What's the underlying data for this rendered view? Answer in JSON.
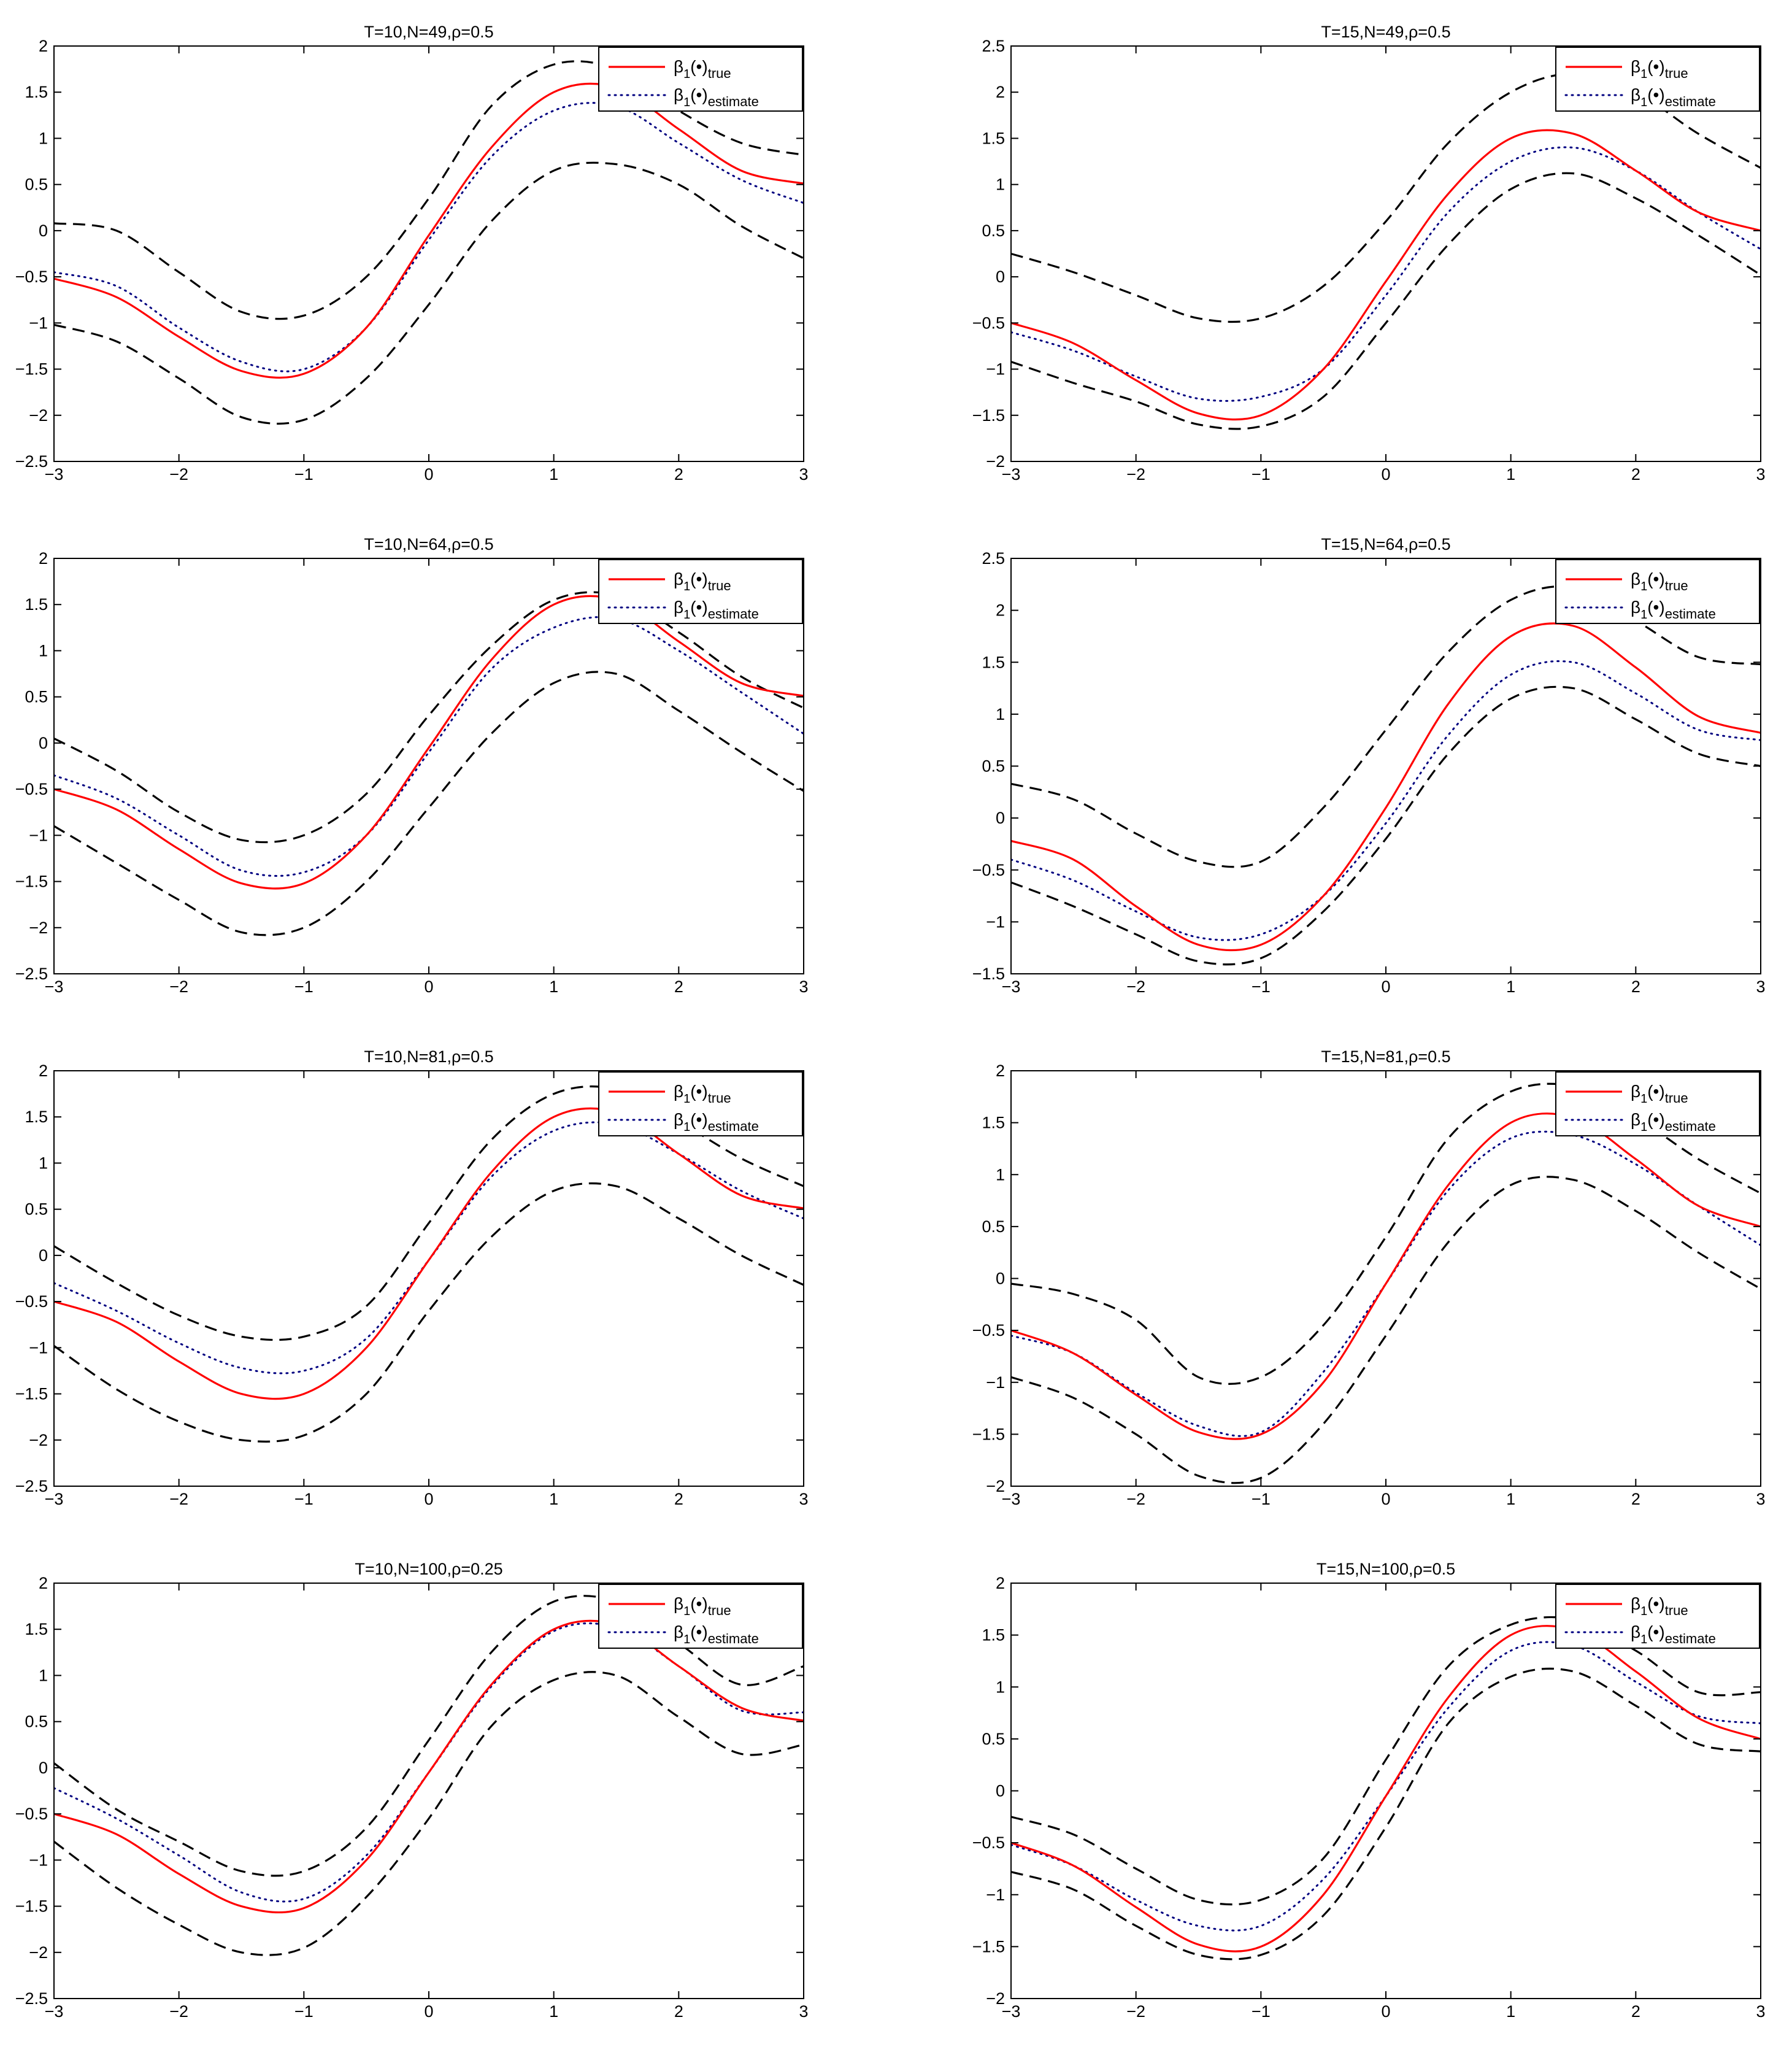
{
  "figure": {
    "colors": {
      "true": "#ff0000",
      "estimate": "#000080",
      "band": "#000000",
      "axis": "#000000"
    },
    "legend": {
      "true_label": "β",
      "true_sub1": "1",
      "true_mid": "(•)",
      "true_sub2": "true",
      "est_label": "β",
      "est_sub1": "1",
      "est_mid": "(•)",
      "est_sub2": "estimate"
    }
  },
  "chart_data": [
    {
      "type": "line",
      "title": "T=10,N=49,ρ=0.5",
      "xlim": [
        -3,
        3
      ],
      "ylim": [
        -2.5,
        2
      ],
      "xticks": [
        -3,
        -2,
        -1,
        0,
        1,
        2,
        3
      ],
      "xtick_labels": [
        "−3",
        "−2",
        "−1",
        "0",
        "1",
        "2",
        "3"
      ],
      "yticks": [
        -2.5,
        -2,
        -1.5,
        -1,
        -0.5,
        0,
        0.5,
        1,
        1.5,
        2
      ],
      "ytick_labels": [
        "−2.5",
        "−2",
        "−1.5",
        "−1",
        "−0.5",
        "0",
        "0.5",
        "1",
        "1.5",
        "2"
      ],
      "x": [
        -3,
        -2.5,
        -2,
        -1.5,
        -1,
        -0.5,
        0,
        0.5,
        1,
        1.5,
        2,
        2.5,
        3
      ],
      "series": [
        {
          "name": "true",
          "values": [
            -0.52,
            -0.72,
            -1.15,
            -1.52,
            -1.55,
            -1.05,
            -0.05,
            0.9,
            1.5,
            1.55,
            1.1,
            0.65,
            0.51
          ]
        },
        {
          "name": "estimate",
          "values": [
            -0.45,
            -0.6,
            -1.05,
            -1.42,
            -1.5,
            -1.05,
            -0.1,
            0.8,
            1.3,
            1.35,
            0.95,
            0.55,
            0.3
          ]
        },
        {
          "name": "upper",
          "values": [
            0.08,
            0.0,
            -0.45,
            -0.88,
            -0.92,
            -0.5,
            0.35,
            1.35,
            1.8,
            1.75,
            1.3,
            0.95,
            0.82
          ]
        },
        {
          "name": "lower",
          "values": [
            -1.02,
            -1.2,
            -1.6,
            -2.02,
            -2.05,
            -1.6,
            -0.8,
            0.1,
            0.65,
            0.72,
            0.5,
            0.05,
            -0.3
          ]
        }
      ]
    },
    {
      "type": "line",
      "title": "T=15,N=49,ρ=0.5",
      "xlim": [
        -3,
        3
      ],
      "ylim": [
        -2,
        2.5
      ],
      "xticks": [
        -3,
        -2,
        -1,
        0,
        1,
        2,
        3
      ],
      "xtick_labels": [
        "−3",
        "−2",
        "−1",
        "0",
        "1",
        "2",
        "3"
      ],
      "yticks": [
        -2,
        -1.5,
        -1,
        -0.5,
        0,
        0.5,
        1,
        1.5,
        2,
        2.5
      ],
      "ytick_labels": [
        "−2",
        "−1.5",
        "−1",
        "−0.5",
        "0",
        "0.5",
        "1",
        "1.5",
        "2",
        "2.5"
      ],
      "x": [
        -3,
        -2.5,
        -2,
        -1.5,
        -1,
        -0.5,
        0,
        0.5,
        1,
        1.5,
        2,
        2.5,
        3
      ],
      "series": [
        {
          "name": "true",
          "values": [
            -0.5,
            -0.72,
            -1.12,
            -1.48,
            -1.5,
            -1.0,
            -0.05,
            0.9,
            1.5,
            1.55,
            1.15,
            0.7,
            0.5
          ]
        },
        {
          "name": "estimate",
          "values": [
            -0.6,
            -0.8,
            -1.08,
            -1.32,
            -1.3,
            -1.0,
            -0.2,
            0.7,
            1.25,
            1.4,
            1.15,
            0.7,
            0.3
          ]
        },
        {
          "name": "upper",
          "values": [
            0.25,
            0.05,
            -0.2,
            -0.45,
            -0.45,
            -0.1,
            0.6,
            1.45,
            2.0,
            2.2,
            2.0,
            1.55,
            1.18
          ]
        },
        {
          "name": "lower",
          "values": [
            -0.92,
            -1.15,
            -1.35,
            -1.6,
            -1.62,
            -1.3,
            -0.5,
            0.35,
            0.95,
            1.12,
            0.85,
            0.45,
            0.02
          ]
        }
      ]
    },
    {
      "type": "line",
      "title": "T=10,N=64,ρ=0.5",
      "xlim": [
        -3,
        3
      ],
      "ylim": [
        -2.5,
        2
      ],
      "xticks": [
        -3,
        -2,
        -1,
        0,
        1,
        2,
        3
      ],
      "xtick_labels": [
        "−3",
        "−2",
        "−1",
        "0",
        "1",
        "2",
        "3"
      ],
      "yticks": [
        -2.5,
        -2,
        -1.5,
        -1,
        -0.5,
        0,
        0.5,
        1,
        1.5,
        2
      ],
      "ytick_labels": [
        "−2.5",
        "−2",
        "−1.5",
        "−1",
        "−0.5",
        "0",
        "0.5",
        "1",
        "1.5",
        "2"
      ],
      "x": [
        -3,
        -2.5,
        -2,
        -1.5,
        -1,
        -0.5,
        0,
        0.5,
        1,
        1.5,
        2,
        2.5,
        3
      ],
      "series": [
        {
          "name": "true",
          "values": [
            -0.5,
            -0.72,
            -1.15,
            -1.52,
            -1.52,
            -1.0,
            -0.05,
            0.9,
            1.5,
            1.55,
            1.1,
            0.65,
            0.51
          ]
        },
        {
          "name": "estimate",
          "values": [
            -0.35,
            -0.6,
            -1.0,
            -1.38,
            -1.4,
            -1.0,
            -0.1,
            0.8,
            1.25,
            1.35,
            1.0,
            0.55,
            0.1
          ]
        },
        {
          "name": "upper",
          "values": [
            0.05,
            -0.3,
            -0.75,
            -1.05,
            -1.0,
            -0.55,
            0.3,
            1.05,
            1.55,
            1.6,
            1.2,
            0.72,
            0.38
          ]
        },
        {
          "name": "lower",
          "values": [
            -0.9,
            -1.3,
            -1.7,
            -2.05,
            -2.0,
            -1.5,
            -0.7,
            0.1,
            0.65,
            0.75,
            0.35,
            -0.1,
            -0.52
          ]
        }
      ]
    },
    {
      "type": "line",
      "title": "T=15,N=64,ρ=0.5",
      "xlim": [
        -3,
        3
      ],
      "ylim": [
        -1.5,
        2.5
      ],
      "xticks": [
        -3,
        -2,
        -1,
        0,
        1,
        2,
        3
      ],
      "xtick_labels": [
        "−3",
        "−2",
        "−1",
        "0",
        "1",
        "2",
        "3"
      ],
      "yticks": [
        -1.5,
        -1,
        -0.5,
        0,
        0.5,
        1,
        1.5,
        2,
        2.5
      ],
      "ytick_labels": [
        "−1.5",
        "−1",
        "−0.5",
        "0",
        "0.5",
        "1",
        "1.5",
        "2",
        "2.5"
      ],
      "x": [
        -3,
        -2.5,
        -2,
        -1.5,
        -1,
        -0.5,
        0,
        0.5,
        1,
        1.5,
        2,
        2.5,
        3
      ],
      "series": [
        {
          "name": "true",
          "values": [
            -0.22,
            -0.4,
            -0.85,
            -1.22,
            -1.22,
            -0.75,
            0.1,
            1.1,
            1.75,
            1.85,
            1.45,
            0.98,
            0.82
          ]
        },
        {
          "name": "estimate",
          "values": [
            -0.4,
            -0.6,
            -0.9,
            -1.15,
            -1.12,
            -0.75,
            -0.05,
            0.8,
            1.38,
            1.5,
            1.2,
            0.85,
            0.75
          ]
        },
        {
          "name": "upper",
          "values": [
            0.33,
            0.18,
            -0.15,
            -0.42,
            -0.42,
            0.1,
            0.85,
            1.6,
            2.1,
            2.22,
            1.9,
            1.55,
            1.48
          ]
        },
        {
          "name": "lower",
          "values": [
            -0.62,
            -0.85,
            -1.12,
            -1.38,
            -1.35,
            -0.9,
            -0.2,
            0.62,
            1.15,
            1.25,
            0.95,
            0.62,
            0.5
          ]
        }
      ]
    },
    {
      "type": "line",
      "title": "T=10,N=81,ρ=0.5",
      "xlim": [
        -3,
        3
      ],
      "ylim": [
        -2.5,
        2
      ],
      "xticks": [
        -3,
        -2,
        -1,
        0,
        1,
        2,
        3
      ],
      "xtick_labels": [
        "−3",
        "−2",
        "−1",
        "0",
        "1",
        "2",
        "3"
      ],
      "yticks": [
        -2.5,
        -2,
        -1.5,
        -1,
        -0.5,
        0,
        0.5,
        1,
        1.5,
        2
      ],
      "ytick_labels": [
        "−2.5",
        "−2",
        "−1.5",
        "−1",
        "−0.5",
        "0",
        "0.5",
        "1",
        "1.5",
        "2"
      ],
      "x": [
        -3,
        -2.5,
        -2,
        -1.5,
        -1,
        -0.5,
        0,
        0.5,
        1,
        1.5,
        2,
        2.5,
        3
      ],
      "series": [
        {
          "name": "true",
          "values": [
            -0.5,
            -0.72,
            -1.15,
            -1.5,
            -1.5,
            -1.0,
            -0.05,
            0.9,
            1.5,
            1.55,
            1.1,
            0.65,
            0.51
          ]
        },
        {
          "name": "estimate",
          "values": [
            -0.3,
            -0.6,
            -0.95,
            -1.22,
            -1.25,
            -0.9,
            -0.05,
            0.85,
            1.35,
            1.42,
            1.1,
            0.7,
            0.4
          ]
        },
        {
          "name": "upper",
          "values": [
            0.1,
            -0.3,
            -0.65,
            -0.88,
            -0.88,
            -0.55,
            0.35,
            1.25,
            1.75,
            1.8,
            1.45,
            1.05,
            0.75
          ]
        },
        {
          "name": "lower",
          "values": [
            -0.98,
            -1.45,
            -1.8,
            -2.0,
            -1.95,
            -1.5,
            -0.6,
            0.2,
            0.7,
            0.75,
            0.4,
            0.0,
            -0.32
          ]
        }
      ]
    },
    {
      "type": "line",
      "title": "T=15,N=81,ρ=0.5",
      "xlim": [
        -3,
        3
      ],
      "ylim": [
        -2,
        2
      ],
      "xticks": [
        -3,
        -2,
        -1,
        0,
        1,
        2,
        3
      ],
      "xtick_labels": [
        "−3",
        "−2",
        "−1",
        "0",
        "1",
        "2",
        "3"
      ],
      "yticks": [
        -2,
        -1.5,
        -1,
        -0.5,
        0,
        0.5,
        1,
        1.5,
        2
      ],
      "ytick_labels": [
        "−2",
        "−1.5",
        "−1",
        "−0.5",
        "0",
        "0.5",
        "1",
        "1.5",
        "2"
      ],
      "x": [
        -3,
        -2.5,
        -2,
        -1.5,
        -1,
        -0.5,
        0,
        0.5,
        1,
        1.5,
        2,
        2.5,
        3
      ],
      "series": [
        {
          "name": "true",
          "values": [
            -0.5,
            -0.72,
            -1.12,
            -1.48,
            -1.5,
            -1.0,
            -0.05,
            0.9,
            1.5,
            1.55,
            1.15,
            0.7,
            0.5
          ]
        },
        {
          "name": "estimate",
          "values": [
            -0.55,
            -0.72,
            -1.1,
            -1.42,
            -1.48,
            -0.9,
            -0.05,
            0.85,
            1.35,
            1.38,
            1.1,
            0.7,
            0.32
          ]
        },
        {
          "name": "upper",
          "values": [
            -0.05,
            -0.15,
            -0.4,
            -0.95,
            -0.95,
            -0.45,
            0.4,
            1.35,
            1.8,
            1.85,
            1.55,
            1.15,
            0.82
          ]
        },
        {
          "name": "lower",
          "values": [
            -0.95,
            -1.15,
            -1.5,
            -1.9,
            -1.92,
            -1.4,
            -0.55,
            0.35,
            0.9,
            0.95,
            0.65,
            0.25,
            -0.1
          ]
        }
      ]
    },
    {
      "type": "line",
      "title": "T=10,N=100,ρ=0.25",
      "xlim": [
        -3,
        3
      ],
      "ylim": [
        -2.5,
        2
      ],
      "xticks": [
        -3,
        -2,
        -1,
        0,
        1,
        2,
        3
      ],
      "xtick_labels": [
        "−3",
        "−2",
        "−1",
        "0",
        "1",
        "2",
        "3"
      ],
      "yticks": [
        -2.5,
        -2,
        -1.5,
        -1,
        -0.5,
        0,
        0.5,
        1,
        1.5,
        2
      ],
      "ytick_labels": [
        "−2.5",
        "−2",
        "−1.5",
        "−1",
        "−0.5",
        "0",
        "0.5",
        "1",
        "1.5",
        "2"
      ],
      "x": [
        -3,
        -2.5,
        -2,
        -1.5,
        -1,
        -0.5,
        0,
        0.5,
        1,
        1.5,
        2,
        2.5,
        3
      ],
      "series": [
        {
          "name": "true",
          "values": [
            -0.5,
            -0.72,
            -1.15,
            -1.5,
            -1.52,
            -1.0,
            -0.05,
            0.9,
            1.5,
            1.55,
            1.1,
            0.65,
            0.51
          ]
        },
        {
          "name": "estimate",
          "values": [
            -0.22,
            -0.55,
            -0.95,
            -1.35,
            -1.42,
            -0.95,
            -0.05,
            0.88,
            1.48,
            1.52,
            1.1,
            0.62,
            0.6
          ]
        },
        {
          "name": "upper",
          "values": [
            0.05,
            -0.45,
            -0.8,
            -1.12,
            -1.12,
            -0.65,
            0.3,
            1.25,
            1.8,
            1.8,
            1.35,
            0.9,
            1.1
          ]
        },
        {
          "name": "lower",
          "values": [
            -0.8,
            -1.3,
            -1.7,
            -2.0,
            -1.95,
            -1.4,
            -0.55,
            0.45,
            0.95,
            1.0,
            0.55,
            0.15,
            0.25
          ]
        }
      ]
    },
    {
      "type": "line",
      "title": "T=15,N=100,ρ=0.5",
      "xlim": [
        -3,
        3
      ],
      "ylim": [
        -2,
        2
      ],
      "xticks": [
        -3,
        -2,
        -1,
        0,
        1,
        2,
        3
      ],
      "xtick_labels": [
        "−3",
        "−2",
        "−1",
        "0",
        "1",
        "2",
        "3"
      ],
      "yticks": [
        -2,
        -1.5,
        -1,
        -0.5,
        0,
        0.5,
        1,
        1.5,
        2
      ],
      "ytick_labels": [
        "−2",
        "−1.5",
        "−1",
        "−0.5",
        "0",
        "0.5",
        "1",
        "1.5",
        "2"
      ],
      "x": [
        -3,
        -2.5,
        -2,
        -1.5,
        -1,
        -0.5,
        0,
        0.5,
        1,
        1.5,
        2,
        2.5,
        3
      ],
      "series": [
        {
          "name": "true",
          "values": [
            -0.5,
            -0.72,
            -1.12,
            -1.48,
            -1.5,
            -1.0,
            -0.05,
            0.9,
            1.5,
            1.55,
            1.15,
            0.7,
            0.5
          ]
        },
        {
          "name": "estimate",
          "values": [
            -0.52,
            -0.72,
            -1.05,
            -1.3,
            -1.3,
            -0.85,
            -0.05,
            0.8,
            1.35,
            1.4,
            1.05,
            0.72,
            0.65
          ]
        },
        {
          "name": "upper",
          "values": [
            -0.25,
            -0.42,
            -0.75,
            -1.05,
            -1.05,
            -0.65,
            0.3,
            1.2,
            1.6,
            1.65,
            1.35,
            0.95,
            0.95
          ]
        },
        {
          "name": "lower",
          "values": [
            -0.78,
            -0.95,
            -1.3,
            -1.58,
            -1.58,
            -1.2,
            -0.35,
            0.65,
            1.1,
            1.15,
            0.82,
            0.45,
            0.38
          ]
        }
      ]
    }
  ]
}
